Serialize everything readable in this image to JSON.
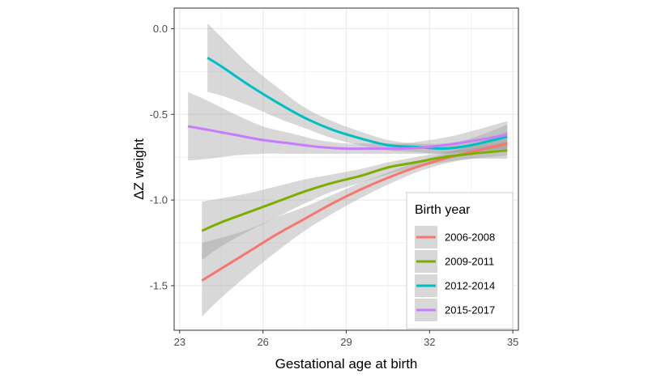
{
  "chart_data": {
    "type": "line",
    "title": "",
    "xlabel": "Gestational age at birth",
    "ylabel": "ΔZ weight",
    "xlim": [
      22.8,
      35.2
    ],
    "ylim": [
      -1.76,
      0.12
    ],
    "x_ticks": [
      23,
      26,
      29,
      32,
      35
    ],
    "x_tick_labels": [
      "23",
      "26",
      "29",
      "32",
      "35"
    ],
    "y_ticks": [
      0.0,
      -0.5,
      -1.0,
      -1.5
    ],
    "y_tick_labels": [
      "0.0",
      "-0.5",
      "-1.0",
      "-1.5"
    ],
    "grid": true,
    "legend_title": "Birth year",
    "legend_position": "bottom-right",
    "band_color": "#999999",
    "series": [
      {
        "name": "2006-2008",
        "color": "#F8766D",
        "x": [
          23.8,
          24.5,
          25.5,
          26.5,
          27.5,
          28.5,
          29.5,
          30.5,
          31.5,
          32.5,
          33.5,
          34.8
        ],
        "y": [
          -1.47,
          -1.4,
          -1.3,
          -1.2,
          -1.11,
          -1.02,
          -0.94,
          -0.87,
          -0.81,
          -0.76,
          -0.72,
          -0.67
        ],
        "lo": [
          -1.68,
          -1.57,
          -1.43,
          -1.3,
          -1.18,
          -1.08,
          -0.99,
          -0.91,
          -0.84,
          -0.79,
          -0.76,
          -0.74
        ],
        "hi": [
          -1.25,
          -1.22,
          -1.17,
          -1.1,
          -1.04,
          -0.97,
          -0.9,
          -0.84,
          -0.78,
          -0.73,
          -0.68,
          -0.6
        ]
      },
      {
        "name": "2009-2011",
        "color": "#7CAE00",
        "x": [
          23.8,
          24.5,
          25.5,
          26.5,
          27.5,
          28.5,
          29.5,
          30.5,
          31.5,
          32.5,
          33.5,
          34.8
        ],
        "y": [
          -1.18,
          -1.13,
          -1.07,
          -1.01,
          -0.95,
          -0.9,
          -0.86,
          -0.81,
          -0.78,
          -0.75,
          -0.73,
          -0.71
        ],
        "lo": [
          -1.35,
          -1.27,
          -1.18,
          -1.1,
          -1.02,
          -0.95,
          -0.9,
          -0.85,
          -0.81,
          -0.78,
          -0.76,
          -0.76
        ],
        "hi": [
          -1.01,
          -0.99,
          -0.96,
          -0.92,
          -0.88,
          -0.85,
          -0.82,
          -0.78,
          -0.75,
          -0.72,
          -0.7,
          -0.66
        ]
      },
      {
        "name": "2012-2014",
        "color": "#00BFC4",
        "x": [
          24.0,
          24.5,
          25.5,
          26.5,
          27.5,
          28.5,
          29.5,
          30.5,
          31.5,
          32.5,
          33.5,
          34.8
        ],
        "y": [
          -0.17,
          -0.22,
          -0.33,
          -0.43,
          -0.52,
          -0.59,
          -0.64,
          -0.68,
          -0.69,
          -0.7,
          -0.68,
          -0.63
        ],
        "lo": [
          -0.37,
          -0.39,
          -0.45,
          -0.52,
          -0.58,
          -0.64,
          -0.68,
          -0.71,
          -0.72,
          -0.73,
          -0.72,
          -0.7
        ],
        "hi": [
          0.03,
          -0.05,
          -0.21,
          -0.34,
          -0.46,
          -0.54,
          -0.6,
          -0.65,
          -0.67,
          -0.67,
          -0.64,
          -0.56
        ]
      },
      {
        "name": "2015-2017",
        "color": "#C77CFF",
        "x": [
          23.3,
          24.0,
          25.0,
          26.0,
          27.0,
          28.0,
          29.0,
          30.0,
          31.0,
          32.0,
          33.0,
          34.8
        ],
        "y": [
          -0.57,
          -0.59,
          -0.62,
          -0.65,
          -0.67,
          -0.69,
          -0.7,
          -0.7,
          -0.7,
          -0.69,
          -0.67,
          -0.62
        ],
        "lo": [
          -0.77,
          -0.76,
          -0.74,
          -0.73,
          -0.73,
          -0.73,
          -0.73,
          -0.73,
          -0.73,
          -0.73,
          -0.72,
          -0.7
        ],
        "hi": [
          -0.37,
          -0.42,
          -0.5,
          -0.57,
          -0.61,
          -0.65,
          -0.67,
          -0.67,
          -0.67,
          -0.65,
          -0.62,
          -0.54
        ]
      }
    ]
  }
}
